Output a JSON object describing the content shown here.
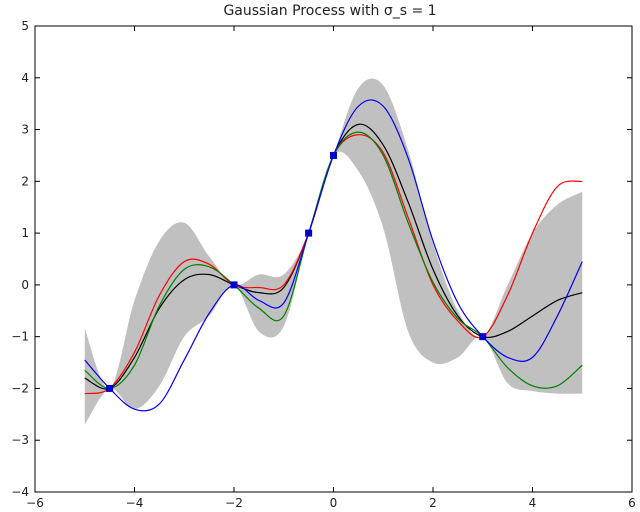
{
  "chart_data": {
    "type": "line",
    "title": "Gaussian Process with σ_s = 1",
    "xlabel": "",
    "ylabel": "",
    "xlim": [
      -6,
      6
    ],
    "ylim": [
      -4,
      5
    ],
    "grid": false,
    "x_ticks": [
      -6,
      -4,
      -2,
      0,
      2,
      4,
      6
    ],
    "x_tick_labels": [
      "−6",
      "−4",
      "−2",
      "0",
      "2",
      "4",
      "6"
    ],
    "y_ticks": [
      -4,
      -3,
      -2,
      -1,
      0,
      1,
      2,
      3,
      4,
      5
    ],
    "y_tick_labels": [
      "−4",
      "−3",
      "−2",
      "−1",
      "0",
      "1",
      "2",
      "3",
      "4",
      "5"
    ],
    "colors": {
      "band": "#c0c0c0",
      "points": "#0000cc"
    },
    "confidence_band": {
      "x": [
        -5.0,
        -4.5,
        -4.0,
        -3.5,
        -3.0,
        -2.5,
        -2.0,
        -1.5,
        -1.0,
        -0.5,
        0.0,
        0.5,
        1.0,
        1.5,
        2.0,
        2.5,
        3.0,
        3.5,
        4.0,
        4.5,
        5.0
      ],
      "upper": [
        -0.85,
        -2.0,
        -0.3,
        0.85,
        1.2,
        0.55,
        0.0,
        0.2,
        0.2,
        1.0,
        2.5,
        3.8,
        3.85,
        2.6,
        0.8,
        -0.5,
        -1.0,
        0.0,
        1.0,
        1.55,
        1.8
      ],
      "lower": [
        -2.7,
        -2.0,
        -2.4,
        -1.95,
        -1.0,
        -0.6,
        0.0,
        -0.9,
        -0.8,
        1.0,
        2.5,
        2.2,
        1.1,
        -0.9,
        -1.5,
        -1.4,
        -1.0,
        -1.9,
        -2.05,
        -2.1,
        -2.1
      ]
    },
    "series": [
      {
        "color": "#000000",
        "x": [
          -5.0,
          -4.5,
          -4.0,
          -3.5,
          -3.0,
          -2.5,
          -2.0,
          -1.5,
          -1.0,
          -0.5,
          0.0,
          0.5,
          1.0,
          1.5,
          2.0,
          2.5,
          3.0,
          3.5,
          4.0,
          4.5,
          5.0
        ],
        "y": [
          -1.8,
          -2.0,
          -1.4,
          -0.45,
          0.1,
          0.2,
          0.0,
          -0.15,
          -0.05,
          1.0,
          2.5,
          3.1,
          2.7,
          1.6,
          0.3,
          -0.6,
          -1.0,
          -0.9,
          -0.6,
          -0.3,
          -0.15
        ]
      },
      {
        "color": "#ff0000",
        "x": [
          -5.0,
          -4.5,
          -4.0,
          -3.5,
          -3.0,
          -2.5,
          -2.0,
          -1.5,
          -1.0,
          -0.5,
          0.0,
          0.5,
          1.0,
          1.5,
          2.0,
          2.5,
          3.0,
          3.5,
          4.0,
          4.5,
          5.0
        ],
        "y": [
          -2.1,
          -2.0,
          -1.3,
          -0.2,
          0.45,
          0.4,
          0.0,
          -0.05,
          0.0,
          1.0,
          2.5,
          2.9,
          2.55,
          1.3,
          0.0,
          -0.7,
          -1.0,
          -0.2,
          1.0,
          1.9,
          2.0
        ]
      },
      {
        "color": "#008000",
        "x": [
          -5.0,
          -4.5,
          -4.0,
          -3.5,
          -3.0,
          -2.5,
          -2.0,
          -1.5,
          -1.0,
          -0.5,
          0.0,
          0.5,
          1.0,
          1.5,
          2.0,
          2.5,
          3.0,
          3.5,
          4.0,
          4.5,
          5.0
        ],
        "y": [
          -1.65,
          -2.0,
          -1.55,
          -0.4,
          0.3,
          0.35,
          0.0,
          -0.45,
          -0.6,
          1.0,
          2.5,
          2.95,
          2.5,
          1.2,
          0.05,
          -0.65,
          -1.0,
          -1.6,
          -1.95,
          -1.95,
          -1.55
        ]
      },
      {
        "color": "#0000ff",
        "x": [
          -5.0,
          -4.5,
          -4.0,
          -3.5,
          -3.0,
          -2.5,
          -2.0,
          -1.5,
          -1.0,
          -0.5,
          0.0,
          0.5,
          1.0,
          1.5,
          2.0,
          2.5,
          3.0,
          3.5,
          4.0,
          4.5,
          5.0
        ],
        "y": [
          -1.45,
          -2.0,
          -2.4,
          -2.3,
          -1.45,
          -0.55,
          0.0,
          -0.3,
          -0.35,
          1.0,
          2.5,
          3.45,
          3.45,
          2.45,
          0.85,
          -0.35,
          -1.0,
          -1.4,
          -1.4,
          -0.6,
          0.45
        ]
      }
    ],
    "observations": {
      "x": [
        -4.5,
        -2.0,
        -0.5,
        0.0,
        3.0
      ],
      "y": [
        -2.0,
        0.0,
        1.0,
        2.5,
        -1.0
      ]
    }
  }
}
